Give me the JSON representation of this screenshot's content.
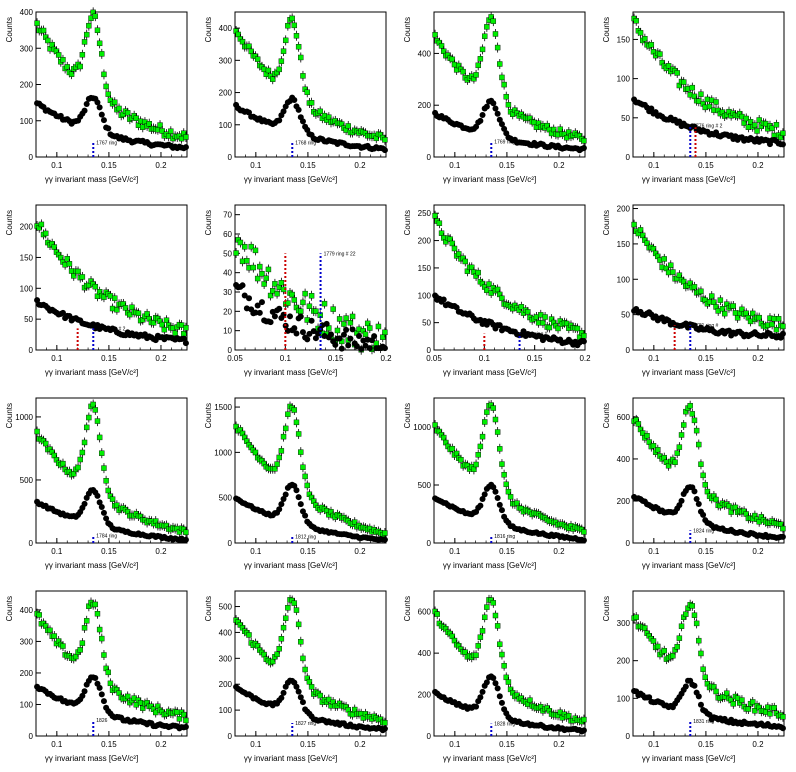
{
  "colors": {
    "signal": "#00ee00",
    "background": "#000000",
    "marker_blue": "#0000cc",
    "marker_red": "#cc0000",
    "axis": "#000000"
  },
  "chart_data": [
    {
      "type": "scatter",
      "xlabel": "γγ invariant mass [GeV/c²]",
      "ylabel": "Counts",
      "xlim": [
        0.08,
        0.225
      ],
      "ylim": [
        0,
        400
      ],
      "xticks": [
        "0.1",
        "0.15",
        "0.2"
      ],
      "yticks": [
        "0",
        "100",
        "200",
        "300",
        "400"
      ],
      "series": [
        {
          "name": "",
          "peak": 390,
          "base_left": 370,
          "base_right": 55,
          "noise": 14
        },
        {
          "name": "",
          "peak": 165,
          "base_left": 150,
          "base_right": 25,
          "noise": 5
        }
      ],
      "markers": [
        {
          "x": 0.135,
          "y": 40,
          "color": "blue"
        }
      ],
      "annotation": "1767 ring"
    },
    {
      "type": "scatter",
      "xlabel": "γγ invariant mass [GeV/c²]",
      "ylabel": "Counts",
      "xlim": [
        0.08,
        0.225
      ],
      "ylim": [
        0,
        450
      ],
      "xticks": [
        "0.1",
        "0.15",
        "0.2"
      ],
      "yticks": [
        "0",
        "100",
        "200",
        "300",
        "400"
      ],
      "series": [
        {
          "name": "",
          "peak": 425,
          "base_left": 400,
          "base_right": 55,
          "noise": 12
        },
        {
          "name": "",
          "peak": 180,
          "base_left": 160,
          "base_right": 25,
          "noise": 5
        }
      ],
      "markers": [
        {
          "x": 0.135,
          "y": 45,
          "color": "blue"
        }
      ],
      "annotation": "1768 ring"
    },
    {
      "type": "scatter",
      "xlabel": "γγ invariant mass [GeV/c²]",
      "ylabel": "Counts",
      "xlim": [
        0.08,
        0.225
      ],
      "ylim": [
        0,
        560
      ],
      "xticks": [
        "0.1",
        "0.15",
        "0.2"
      ],
      "yticks": [
        "0",
        "200",
        "400"
      ],
      "series": [
        {
          "name": "",
          "peak": 535,
          "base_left": 470,
          "base_right": 70,
          "noise": 14
        },
        {
          "name": "",
          "peak": 215,
          "base_left": 170,
          "base_right": 30,
          "noise": 6
        }
      ],
      "markers": [
        {
          "x": 0.135,
          "y": 60,
          "color": "blue"
        }
      ],
      "annotation": "1769 ring"
    },
    {
      "type": "scatter",
      "xlabel": "γγ invariant mass [GeV/c²]",
      "ylabel": "Counts",
      "xlim": [
        0.08,
        0.225
      ],
      "ylim": [
        0,
        185
      ],
      "xticks": [
        "0.1",
        "0.15",
        "0.2"
      ],
      "yticks": [
        "0",
        "50",
        "100",
        "150"
      ],
      "series": [
        {
          "name": "",
          "peak": 0,
          "base_left": 175,
          "base_right": 32,
          "noise": 8
        },
        {
          "name": "",
          "peak": 0,
          "base_left": 75,
          "base_right": 18,
          "noise": 3
        }
      ],
      "markers": [
        {
          "x": 0.135,
          "y": 40,
          "color": "blue"
        },
        {
          "x": 0.14,
          "y": 40,
          "color": "red"
        }
      ],
      "annotation": "1776 ring # 2"
    },
    {
      "type": "scatter",
      "xlabel": "γγ invariant mass [GeV/c²]",
      "ylabel": "Counts",
      "xlim": [
        0.08,
        0.225
      ],
      "ylim": [
        0,
        235
      ],
      "xticks": [
        "0.1",
        "0.15",
        "0.2"
      ],
      "yticks": [
        "0",
        "50",
        "100",
        "150",
        "200"
      ],
      "series": [
        {
          "name": "",
          "peak": 0,
          "base_left": 210,
          "base_right": 30,
          "noise": 10
        },
        {
          "name": "",
          "peak": 0,
          "base_left": 80,
          "base_right": 15,
          "noise": 4
        }
      ],
      "markers": [
        {
          "x": 0.135,
          "y": 35,
          "color": "blue"
        },
        {
          "x": 0.12,
          "y": 35,
          "color": "red"
        }
      ],
      "annotation": "1777 ring # 2"
    },
    {
      "type": "scatter",
      "xlabel": "γγ invariant mass [GeV/c²]",
      "ylabel": "Counts",
      "xlim": [
        0.05,
        0.2
      ],
      "ylim": [
        0,
        75
      ],
      "xticks": [
        "0.05",
        "0.1",
        "0.15",
        "0.2"
      ],
      "yticks": [
        "0",
        "10",
        "20",
        "30",
        "40",
        "50",
        "60",
        "70"
      ],
      "series": [
        {
          "name": "",
          "peak": 0,
          "base_left": 60,
          "base_right": 5,
          "noise": 9
        },
        {
          "name": "",
          "peak": 0,
          "base_left": 32,
          "base_right": 2,
          "noise": 6
        }
      ],
      "markers": [
        {
          "x": 0.135,
          "y": 50,
          "color": "blue"
        },
        {
          "x": 0.1,
          "y": 50,
          "color": "red"
        }
      ],
      "annotation": "1779 ring # 22"
    },
    {
      "type": "scatter",
      "xlabel": "γγ invariant mass [GeV/c²]",
      "ylabel": "Counts",
      "xlim": [
        0.05,
        0.2
      ],
      "ylim": [
        0,
        265
      ],
      "xticks": [
        "0.05",
        "0.1",
        "0.15",
        "0.2"
      ],
      "yticks": [
        "0",
        "50",
        "100",
        "150",
        "200",
        "250"
      ],
      "series": [
        {
          "name": "",
          "peak": 0,
          "base_left": 240,
          "base_right": 30,
          "noise": 10
        },
        {
          "name": "",
          "peak": 0,
          "base_left": 100,
          "base_right": 12,
          "noise": 5
        }
      ],
      "markers": [
        {
          "x": 0.135,
          "y": 30,
          "color": "blue"
        },
        {
          "x": 0.1,
          "y": 30,
          "color": "red"
        }
      ],
      "annotation": "1780 ring #"
    },
    {
      "type": "scatter",
      "xlabel": "γγ invariant mass [GeV/c²]",
      "ylabel": "Counts",
      "xlim": [
        0.08,
        0.225
      ],
      "ylim": [
        0,
        205
      ],
      "xticks": [
        "0.1",
        "0.15",
        "0.2"
      ],
      "yticks": [
        "0",
        "50",
        "100",
        "150",
        "200"
      ],
      "series": [
        {
          "name": "",
          "peak": 0,
          "base_left": 180,
          "base_right": 35,
          "noise": 9
        },
        {
          "name": "",
          "peak": 0,
          "base_left": 60,
          "base_right": 20,
          "noise": 4
        }
      ],
      "markers": [
        {
          "x": 0.135,
          "y": 35,
          "color": "blue"
        },
        {
          "x": 0.12,
          "y": 35,
          "color": "red"
        }
      ],
      "annotation": "1781 ring #"
    },
    {
      "type": "scatter",
      "xlabel": "γγ invariant mass [GeV/c²]",
      "ylabel": "Counts",
      "xlim": [
        0.08,
        0.225
      ],
      "ylim": [
        0,
        1150
      ],
      "xticks": [
        "0.1",
        "0.15",
        "0.2"
      ],
      "yticks": [
        "0",
        "500",
        "1000"
      ],
      "series": [
        {
          "name": "",
          "peak": 1080,
          "base_left": 880,
          "base_right": 90,
          "noise": 20
        },
        {
          "name": "",
          "peak": 420,
          "base_left": 330,
          "base_right": 25,
          "noise": 8
        }
      ],
      "markers": [
        {
          "x": 0.135,
          "y": 60,
          "color": "blue"
        }
      ],
      "annotation": "1784 ring"
    },
    {
      "type": "scatter",
      "xlabel": "γγ invariant mass [GeV/c²]",
      "ylabel": "Counts",
      "xlim": [
        0.08,
        0.225
      ],
      "ylim": [
        0,
        1600
      ],
      "xticks": [
        "0.1",
        "0.15",
        "0.2"
      ],
      "yticks": [
        "0",
        "500",
        "1000",
        "1500"
      ],
      "series": [
        {
          "name": "",
          "peak": 1500,
          "base_left": 1320,
          "base_right": 100,
          "noise": 25
        },
        {
          "name": "",
          "peak": 650,
          "base_left": 500,
          "base_right": 30,
          "noise": 10
        }
      ],
      "markers": [
        {
          "x": 0.135,
          "y": 70,
          "color": "blue"
        }
      ],
      "annotation": "1812 ring"
    },
    {
      "type": "scatter",
      "xlabel": "γγ invariant mass [GeV/c²]",
      "ylabel": "Counts",
      "xlim": [
        0.08,
        0.225
      ],
      "ylim": [
        0,
        1250
      ],
      "xticks": [
        "0.1",
        "0.15",
        "0.2"
      ],
      "yticks": [
        "0",
        "500",
        "1000"
      ],
      "series": [
        {
          "name": "",
          "peak": 1210,
          "base_left": 1020,
          "base_right": 100,
          "noise": 22
        },
        {
          "name": "",
          "peak": 500,
          "base_left": 400,
          "base_right": 30,
          "noise": 9
        }
      ],
      "markers": [
        {
          "x": 0.135,
          "y": 60,
          "color": "blue"
        }
      ],
      "annotation": "1816 ring"
    },
    {
      "type": "scatter",
      "xlabel": "γγ invariant mass [GeV/c²]",
      "ylabel": "Counts",
      "xlim": [
        0.08,
        0.225
      ],
      "ylim": [
        0,
        690
      ],
      "xticks": [
        "0.1",
        "0.15",
        "0.2"
      ],
      "yticks": [
        "0",
        "200",
        "400",
        "600"
      ],
      "series": [
        {
          "name": "",
          "peak": 650,
          "base_left": 600,
          "base_right": 80,
          "noise": 16
        },
        {
          "name": "",
          "peak": 270,
          "base_left": 225,
          "base_right": 25,
          "noise": 6
        }
      ],
      "markers": [
        {
          "x": 0.135,
          "y": 60,
          "color": "blue"
        }
      ],
      "annotation": "1824 ring"
    },
    {
      "type": "scatter",
      "xlabel": "γγ invariant mass [GeV/c²]",
      "ylabel": "Counts",
      "xlim": [
        0.08,
        0.225
      ],
      "ylim": [
        0,
        460
      ],
      "xticks": [
        "0.1",
        "0.15",
        "0.2"
      ],
      "yticks": [
        "0",
        "100",
        "200",
        "300",
        "400"
      ],
      "series": [
        {
          "name": "",
          "peak": 425,
          "base_left": 390,
          "base_right": 60,
          "noise": 12
        },
        {
          "name": "",
          "peak": 190,
          "base_left": 160,
          "base_right": 25,
          "noise": 5
        }
      ],
      "markers": [
        {
          "x": 0.135,
          "y": 50,
          "color": "blue"
        }
      ],
      "annotation": "1826"
    },
    {
      "type": "scatter",
      "xlabel": "γγ invariant mass [GeV/c²]",
      "ylabel": "Counts",
      "xlim": [
        0.08,
        0.225
      ],
      "ylim": [
        0,
        560
      ],
      "xticks": [
        "0.1",
        "0.15",
        "0.2"
      ],
      "yticks": [
        "0",
        "100",
        "200",
        "300",
        "400",
        "500"
      ],
      "series": [
        {
          "name": "",
          "peak": 530,
          "base_left": 460,
          "base_right": 60,
          "noise": 13
        },
        {
          "name": "",
          "peak": 215,
          "base_left": 190,
          "base_right": 25,
          "noise": 5
        }
      ],
      "markers": [
        {
          "x": 0.135,
          "y": 50,
          "color": "blue"
        }
      ],
      "annotation": "1827 ring"
    },
    {
      "type": "scatter",
      "xlabel": "γγ invariant mass [GeV/c²]",
      "ylabel": "Counts",
      "xlim": [
        0.08,
        0.225
      ],
      "ylim": [
        0,
        700
      ],
      "xticks": [
        "0.1",
        "0.15",
        "0.2"
      ],
      "yticks": [
        "0",
        "200",
        "400",
        "600"
      ],
      "series": [
        {
          "name": "",
          "peak": 660,
          "base_left": 600,
          "base_right": 70,
          "noise": 15
        },
        {
          "name": "",
          "peak": 285,
          "base_left": 210,
          "base_right": 25,
          "noise": 6
        }
      ],
      "markers": [
        {
          "x": 0.135,
          "y": 60,
          "color": "blue"
        }
      ],
      "annotation": "1828 ring"
    },
    {
      "type": "scatter",
      "xlabel": "γγ invariant mass [GeV/c²]",
      "ylabel": "Counts",
      "xlim": [
        0.08,
        0.225
      ],
      "ylim": [
        0,
        385
      ],
      "xticks": [
        "0.1",
        "0.15",
        "0.2"
      ],
      "yticks": [
        "0",
        "100",
        "200",
        "300"
      ],
      "series": [
        {
          "name": "",
          "peak": 355,
          "base_left": 320,
          "base_right": 60,
          "noise": 12
        },
        {
          "name": "",
          "peak": 145,
          "base_left": 120,
          "base_right": 25,
          "noise": 5
        }
      ],
      "markers": [
        {
          "x": 0.135,
          "y": 40,
          "color": "blue"
        }
      ],
      "annotation": "1831 ring"
    }
  ]
}
